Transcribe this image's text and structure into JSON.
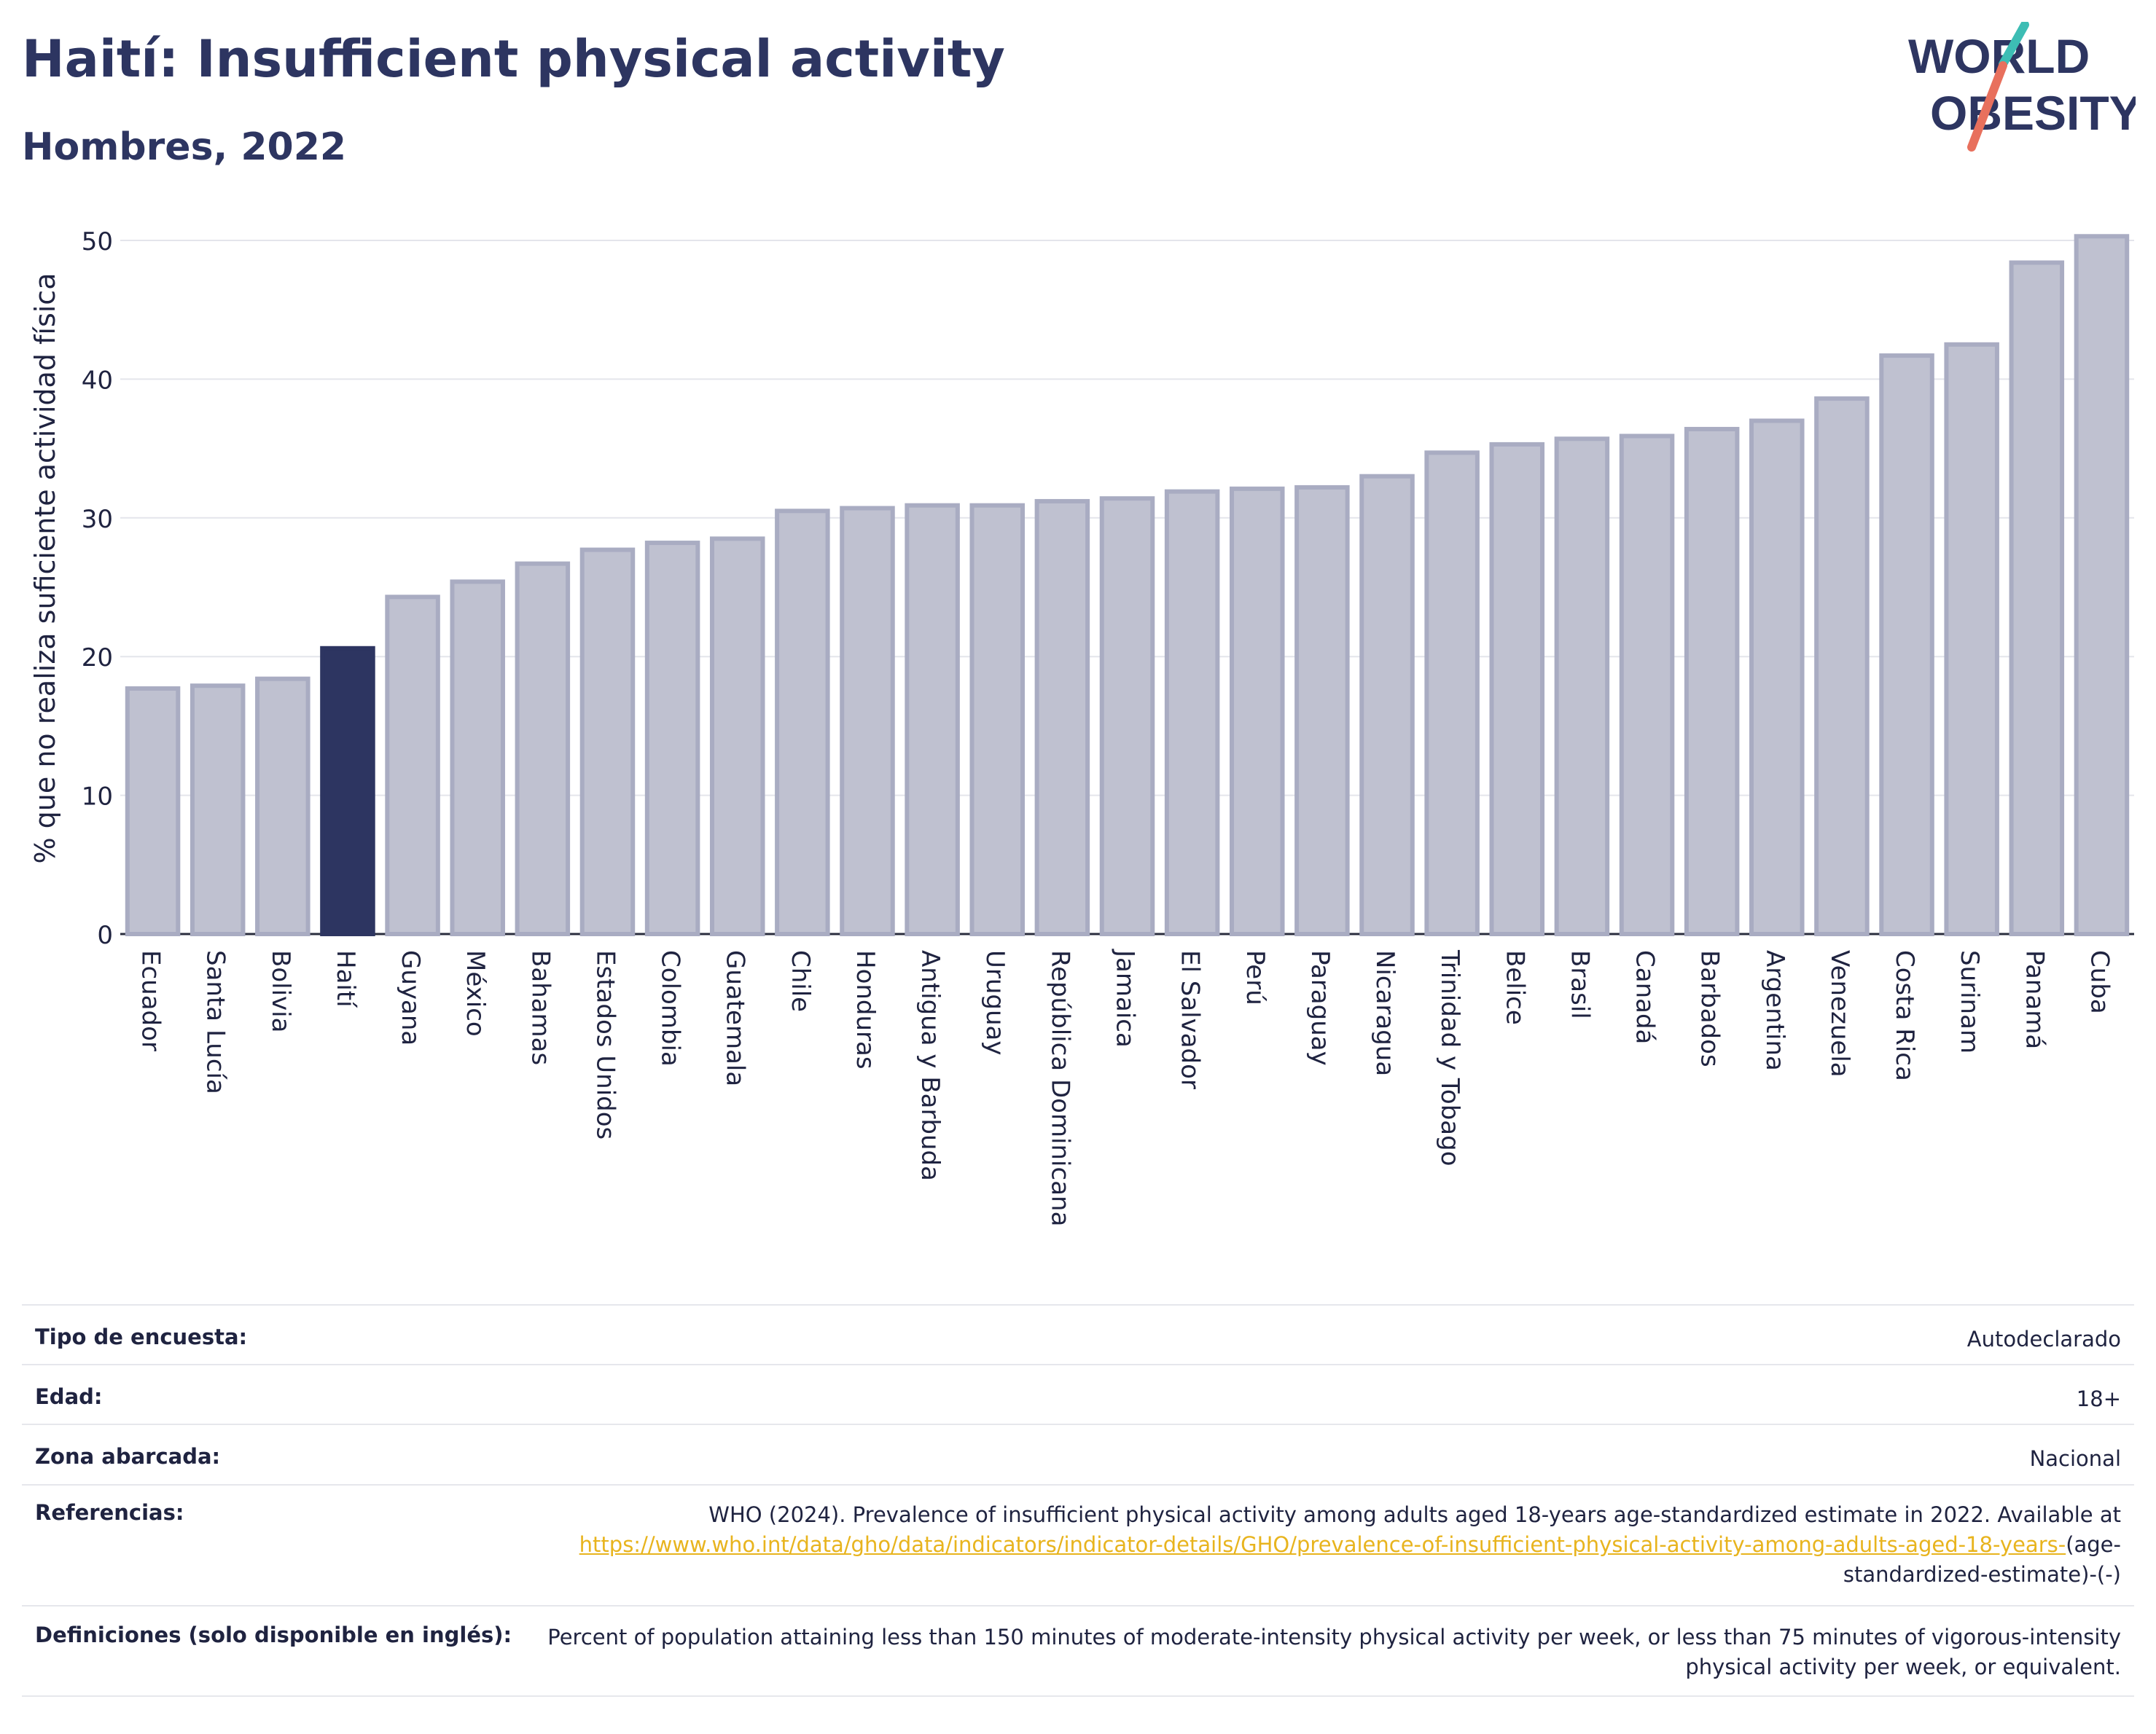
{
  "header": {
    "title": "Haití: Insufficient physical activity",
    "subtitle": "Hombres, 2022"
  },
  "logo": {
    "line1": "WORLD",
    "line2": "OBESITY"
  },
  "colors": {
    "highlight": "#2d3561",
    "bar_fill": "#bfc1d0",
    "bar_stroke": "#a9acc2",
    "logo_text": "#2d3561",
    "logo_teal": "#3dbdb4",
    "logo_red": "#e8705d",
    "link": "#e8b41e"
  },
  "chart_data": {
    "type": "bar",
    "ylabel": "% que no realiza suficiente actividad física",
    "ylim": [
      0,
      50
    ],
    "yticks": [
      0,
      10,
      20,
      30,
      40,
      50
    ],
    "grid": true,
    "highlight": "Haití",
    "categories": [
      "Ecuador",
      "Santa Lucía",
      "Bolivia",
      "Haití",
      "Guyana",
      "México",
      "Bahamas",
      "Estados Unidos",
      "Colombia",
      "Guatemala",
      "Chile",
      "Honduras",
      "Antigua y Barbuda",
      "Uruguay",
      "República Dominicana",
      "Jamaica",
      "El Salvador",
      "Perú",
      "Paraguay",
      "Nicaragua",
      "Trinidad y Tobago",
      "Belice",
      "Brasil",
      "Canadá",
      "Barbados",
      "Argentina",
      "Venezuela",
      "Costa Rica",
      "Surinam",
      "Panamá",
      "Cuba"
    ],
    "values": [
      17.7,
      17.9,
      18.4,
      20.6,
      24.3,
      25.4,
      26.7,
      27.7,
      28.2,
      28.5,
      30.5,
      30.7,
      30.9,
      30.9,
      31.2,
      31.4,
      31.9,
      32.1,
      32.2,
      33.0,
      34.7,
      35.3,
      35.7,
      35.9,
      36.4,
      37.0,
      38.6,
      41.7,
      42.5,
      48.4,
      50.3
    ]
  },
  "table": {
    "rows": [
      {
        "label": "Tipo de encuesta:",
        "value": "Autodeclarado"
      },
      {
        "label": "Edad:",
        "value": "18+"
      },
      {
        "label": "Zona abarcada:",
        "value": "Nacional"
      },
      {
        "label": "Referencias:",
        "value_prefix": "WHO (2024). Prevalence of insufficient physical activity among adults aged 18-years age-standardized estimate in 2022. Available at",
        "link": "https://www.who.int/data/gho/data/indicators/indicator-details/GHO/prevalence-of-insufficient-physical-activity-among-adults-aged-18-years-",
        "value_suffix": "(age-standardized-estimate)-(-)"
      },
      {
        "label": "Definiciones (solo disponible en inglés):",
        "value": "Percent of population attaining less than 150 minutes of moderate-intensity physical activity per week, or less than 75 minutes of vigorous-intensity physical activity per week, or equivalent."
      }
    ]
  }
}
